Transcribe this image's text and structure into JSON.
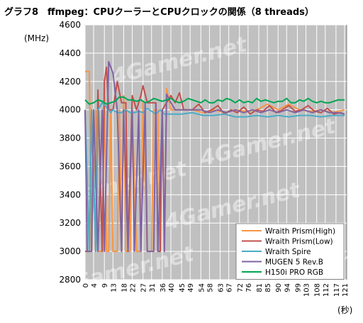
{
  "chart_data": {
    "type": "line",
    "title": "グラフ8　ffmpeg：CPUクーラーとCPUクロックの関係（8 threads）",
    "ylabel": "(MHz)",
    "xlabel": "(秒)",
    "watermark": "4Gamer.net",
    "ylim": [
      2800,
      4600
    ],
    "yticks": [
      2800,
      3000,
      3200,
      3400,
      3600,
      3800,
      4000,
      4200,
      4400,
      4600
    ],
    "xlim": [
      0,
      122
    ],
    "xticks": [
      "0",
      "4",
      "9",
      "13",
      "18",
      "22",
      "27",
      "31",
      "36",
      "40",
      "45",
      "49",
      "54",
      "58",
      "63",
      "67",
      "72",
      "76",
      "81",
      "85",
      "90",
      "94",
      "99",
      "103",
      "108",
      "112",
      "117",
      "121"
    ],
    "grid": true,
    "background": "#c0c0c0",
    "legend_position": "bottom-right",
    "series": [
      {
        "name": "Wraith Prism(High)",
        "color": "#f79646",
        "points": [
          [
            0,
            4270
          ],
          [
            2,
            4270
          ],
          [
            3,
            3000
          ],
          [
            5,
            4000
          ],
          [
            6,
            3000
          ],
          [
            8,
            3000
          ],
          [
            9,
            4100
          ],
          [
            10,
            3000
          ],
          [
            11,
            3000
          ],
          [
            12,
            4000
          ],
          [
            13,
            3000
          ],
          [
            15,
            3000
          ],
          [
            16,
            4000
          ],
          [
            17,
            3000
          ],
          [
            18,
            4100
          ],
          [
            19,
            3000
          ],
          [
            21,
            3000
          ],
          [
            22,
            4000
          ],
          [
            24,
            3000
          ],
          [
            26,
            3000
          ],
          [
            27,
            4050
          ],
          [
            29,
            3000
          ],
          [
            31,
            3000
          ],
          [
            32,
            4000
          ],
          [
            34,
            4000
          ],
          [
            35,
            3000
          ],
          [
            36,
            4000
          ],
          [
            37,
            3000
          ],
          [
            38,
            4150
          ],
          [
            40,
            4000
          ],
          [
            50,
            4000
          ],
          [
            55,
            3980
          ],
          [
            60,
            4000
          ],
          [
            65,
            3980
          ],
          [
            70,
            4000
          ],
          [
            75,
            3990
          ],
          [
            80,
            4000
          ],
          [
            85,
            4040
          ],
          [
            90,
            4000
          ],
          [
            95,
            4040
          ],
          [
            100,
            4000
          ],
          [
            105,
            3990
          ],
          [
            110,
            4000
          ],
          [
            115,
            3980
          ],
          [
            121,
            4000
          ]
        ]
      },
      {
        "name": "Wraith Prism(Low)",
        "color": "#c0504d",
        "points": [
          [
            0,
            3000
          ],
          [
            2,
            3000
          ],
          [
            3,
            4000
          ],
          [
            5,
            3000
          ],
          [
            6,
            4140
          ],
          [
            8,
            3000
          ],
          [
            9,
            4200
          ],
          [
            10,
            4300
          ],
          [
            11,
            4000
          ],
          [
            13,
            4000
          ],
          [
            15,
            4200
          ],
          [
            17,
            4050
          ],
          [
            19,
            4050
          ],
          [
            20,
            3000
          ],
          [
            22,
            4100
          ],
          [
            24,
            4000
          ],
          [
            26,
            4100
          ],
          [
            27,
            4170
          ],
          [
            29,
            4050
          ],
          [
            31,
            4050
          ],
          [
            33,
            4050
          ],
          [
            34,
            3000
          ],
          [
            35,
            3000
          ],
          [
            36,
            4000
          ],
          [
            38,
            4050
          ],
          [
            40,
            4100
          ],
          [
            42,
            4050
          ],
          [
            44,
            4120
          ],
          [
            46,
            4000
          ],
          [
            50,
            4000
          ],
          [
            53,
            4040
          ],
          [
            56,
            3980
          ],
          [
            59,
            4000
          ],
          [
            62,
            4030
          ],
          [
            65,
            3970
          ],
          [
            68,
            4000
          ],
          [
            71,
            3980
          ],
          [
            74,
            4020
          ],
          [
            77,
            3970
          ],
          [
            80,
            4000
          ],
          [
            83,
            3990
          ],
          [
            86,
            4030
          ],
          [
            89,
            3980
          ],
          [
            92,
            4000
          ],
          [
            95,
            4030
          ],
          [
            98,
            3990
          ],
          [
            101,
            4000
          ],
          [
            104,
            4030
          ],
          [
            107,
            3990
          ],
          [
            110,
            3980
          ],
          [
            113,
            4010
          ],
          [
            116,
            3970
          ],
          [
            119,
            3980
          ],
          [
            121,
            3970
          ]
        ]
      },
      {
        "name": "Wraith Spire",
        "color": "#4bacc6",
        "points": [
          [
            0,
            4000
          ],
          [
            2,
            3000
          ],
          [
            3,
            4000
          ],
          [
            5,
            3000
          ],
          [
            6,
            4000
          ],
          [
            8,
            4050
          ],
          [
            10,
            4020
          ],
          [
            12,
            3980
          ],
          [
            13,
            4000
          ],
          [
            15,
            3980
          ],
          [
            17,
            3980
          ],
          [
            19,
            4000
          ],
          [
            21,
            3980
          ],
          [
            23,
            3980
          ],
          [
            25,
            3990
          ],
          [
            27,
            3980
          ],
          [
            29,
            4010
          ],
          [
            31,
            3990
          ],
          [
            33,
            3970
          ],
          [
            35,
            4000
          ],
          [
            37,
            3970
          ],
          [
            40,
            3970
          ],
          [
            45,
            3970
          ],
          [
            50,
            3980
          ],
          [
            55,
            3960
          ],
          [
            60,
            3960
          ],
          [
            65,
            3970
          ],
          [
            70,
            3950
          ],
          [
            75,
            3950
          ],
          [
            80,
            3960
          ],
          [
            85,
            3950
          ],
          [
            90,
            3960
          ],
          [
            95,
            3950
          ],
          [
            100,
            3960
          ],
          [
            105,
            3960
          ],
          [
            110,
            3950
          ],
          [
            115,
            3960
          ],
          [
            121,
            3960
          ]
        ]
      },
      {
        "name": "MUGEN 5 Rev.B",
        "color": "#8064a2",
        "points": [
          [
            0,
            4000
          ],
          [
            1,
            3000
          ],
          [
            3,
            3000
          ],
          [
            4,
            4000
          ],
          [
            6,
            3000
          ],
          [
            8,
            4000
          ],
          [
            9,
            3000
          ],
          [
            11,
            4340
          ],
          [
            13,
            4260
          ],
          [
            15,
            4000
          ],
          [
            17,
            3000
          ],
          [
            18,
            4000
          ],
          [
            20,
            3000
          ],
          [
            22,
            4000
          ],
          [
            23,
            3000
          ],
          [
            25,
            4000
          ],
          [
            26,
            3000
          ],
          [
            28,
            4050
          ],
          [
            29,
            3000
          ],
          [
            31,
            3000
          ],
          [
            32,
            3000
          ],
          [
            33,
            4040
          ],
          [
            34,
            3000
          ],
          [
            36,
            4000
          ],
          [
            37,
            3000
          ],
          [
            38,
            4110
          ],
          [
            40,
            4050
          ],
          [
            42,
            4000
          ],
          [
            46,
            4000
          ],
          [
            50,
            4000
          ],
          [
            54,
            4000
          ],
          [
            58,
            3980
          ],
          [
            62,
            4000
          ],
          [
            66,
            3980
          ],
          [
            70,
            4000
          ],
          [
            74,
            3980
          ],
          [
            78,
            4000
          ],
          [
            82,
            3980
          ],
          [
            86,
            4000
          ],
          [
            90,
            3980
          ],
          [
            94,
            4000
          ],
          [
            98,
            3980
          ],
          [
            102,
            4000
          ],
          [
            106,
            3980
          ],
          [
            110,
            4000
          ],
          [
            114,
            3980
          ],
          [
            118,
            3980
          ],
          [
            121,
            3970
          ]
        ]
      },
      {
        "name": "H150i PRO RGB",
        "color": "#00a651",
        "points": [
          [
            0,
            4070
          ],
          [
            2,
            4040
          ],
          [
            4,
            4050
          ],
          [
            6,
            4070
          ],
          [
            8,
            4060
          ],
          [
            10,
            4040
          ],
          [
            12,
            4050
          ],
          [
            14,
            4060
          ],
          [
            16,
            4090
          ],
          [
            18,
            4090
          ],
          [
            20,
            4070
          ],
          [
            22,
            4070
          ],
          [
            24,
            4060
          ],
          [
            26,
            4070
          ],
          [
            28,
            4050
          ],
          [
            30,
            4060
          ],
          [
            32,
            4080
          ],
          [
            34,
            4070
          ],
          [
            36,
            4060
          ],
          [
            38,
            4070
          ],
          [
            40,
            4080
          ],
          [
            42,
            4060
          ],
          [
            44,
            4050
          ],
          [
            46,
            4060
          ],
          [
            48,
            4080
          ],
          [
            50,
            4070
          ],
          [
            52,
            4060
          ],
          [
            54,
            4050
          ],
          [
            56,
            4070
          ],
          [
            58,
            4050
          ],
          [
            60,
            4050
          ],
          [
            62,
            4070
          ],
          [
            64,
            4060
          ],
          [
            66,
            4080
          ],
          [
            68,
            4070
          ],
          [
            70,
            4050
          ],
          [
            72,
            4070
          ],
          [
            74,
            4050
          ],
          [
            76,
            4060
          ],
          [
            78,
            4050
          ],
          [
            80,
            4080
          ],
          [
            82,
            4060
          ],
          [
            84,
            4070
          ],
          [
            86,
            4060
          ],
          [
            88,
            4050
          ],
          [
            90,
            4060
          ],
          [
            92,
            4060
          ],
          [
            94,
            4080
          ],
          [
            96,
            4050
          ],
          [
            98,
            4050
          ],
          [
            100,
            4070
          ],
          [
            102,
            4060
          ],
          [
            104,
            4080
          ],
          [
            106,
            4060
          ],
          [
            108,
            4050
          ],
          [
            110,
            4060
          ],
          [
            112,
            4050
          ],
          [
            114,
            4050
          ],
          [
            116,
            4060
          ],
          [
            118,
            4070
          ],
          [
            121,
            4070
          ]
        ]
      }
    ]
  }
}
